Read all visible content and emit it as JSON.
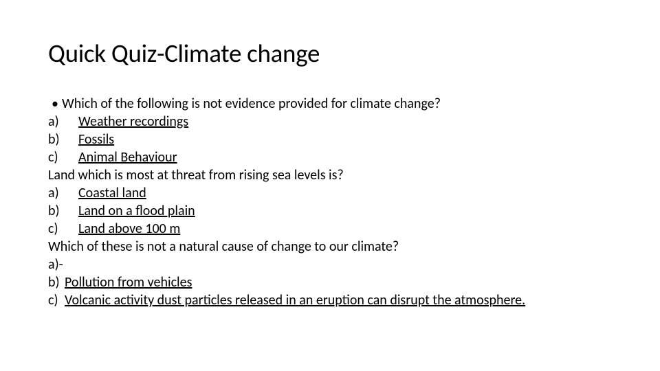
{
  "title": "Quick Quiz-Climate change",
  "q1": {
    "prompt": "Which of the following is not evidence provided for climate change?",
    "a_marker": "a)",
    "a_text": "Weather recordings",
    "b_marker": "b)",
    "b_text": "Fossils",
    "c_marker": "c)",
    "c_text": "Animal Behaviour"
  },
  "q2": {
    "prompt": "Land which is most at threat from rising sea levels is?",
    "a_marker": "a)",
    "a_text": "Coastal land",
    "b_marker": "b)",
    "b_text": "Land on a flood plain",
    "c_marker": "c)",
    "c_text": "Land above 100 m"
  },
  "q3": {
    "prompt": "Which of these is not a natural cause of change to our climate?",
    "a_marker": "a)-",
    "b_marker": "b) ",
    "b_text": "Pollution from vehicles",
    "c_marker": "c) ",
    "c_text": "Volcanic activity dust particles released in an eruption can disrupt the atmosphere."
  },
  "colors": {
    "background": "#ffffff",
    "text": "#000000"
  },
  "typography": {
    "title_fontsize": 37,
    "body_fontsize": 20,
    "font_family": "Calibri"
  }
}
